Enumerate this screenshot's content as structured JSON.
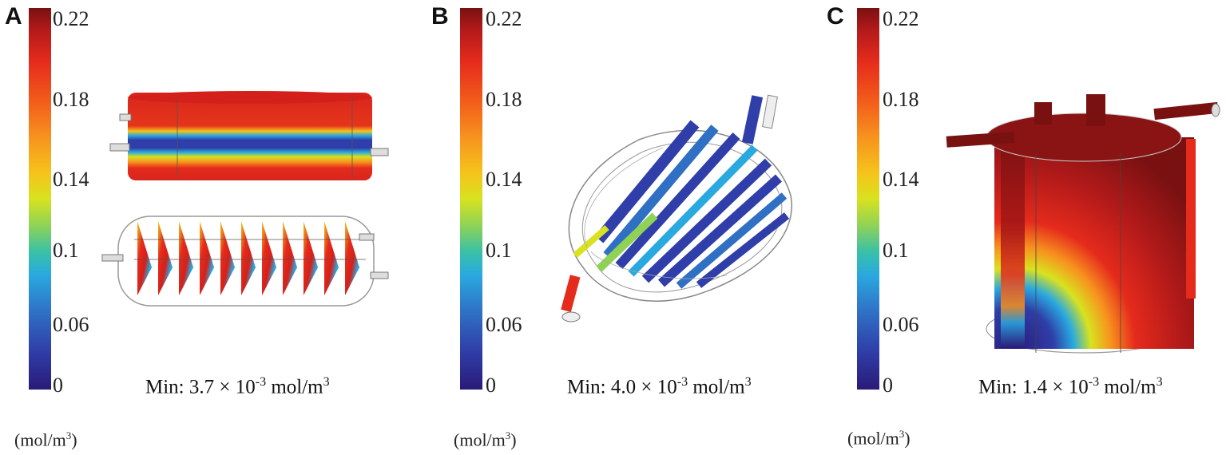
{
  "colorbar": {
    "ticks": [
      "0.22",
      "0.18",
      "0.14",
      "0.1",
      "0.06",
      "0"
    ],
    "units_prefix": "(mol/m",
    "units_exp": "3",
    "units_suffix": ")"
  },
  "panels": [
    {
      "letter": "A",
      "min_prefix": "Min: 3.7 × 10",
      "min_exp": "-3",
      "min_unit": " mol/m",
      "min_unit_exp": "3"
    },
    {
      "letter": "B",
      "min_prefix": "Min: 4.0 × 10",
      "min_exp": "-3",
      "min_unit": " mol/m",
      "min_unit_exp": "3"
    },
    {
      "letter": "C",
      "min_prefix": "Min: 1.4 × 10",
      "min_exp": "-3",
      "min_unit": " mol/m",
      "min_unit_exp": "3"
    }
  ],
  "colors": {
    "high": "#7a1111",
    "red": "#e52b1c",
    "orange": "#f7931e",
    "yellow": "#d8e21f",
    "cyan": "#29a9e0",
    "blue": "#2f3ea8",
    "low": "#2a1a78"
  }
}
